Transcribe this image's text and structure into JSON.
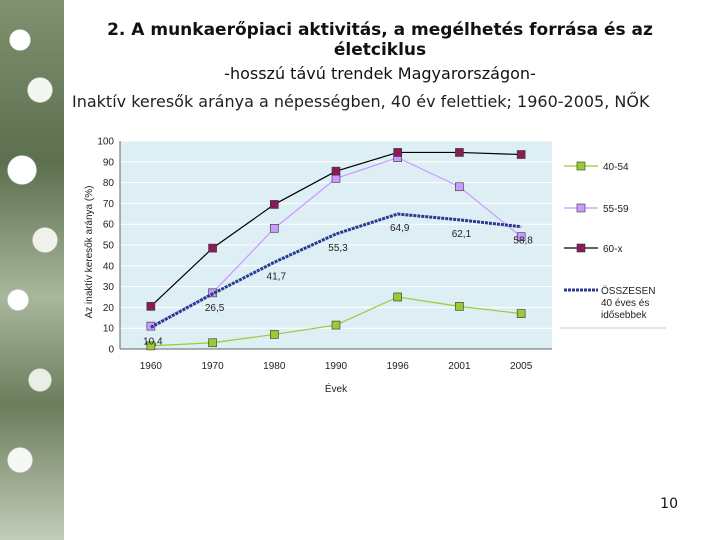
{
  "slide": {
    "title": "2. A munkaerőpiaci aktivitás, a megélhetés forrása és az életciklus",
    "subtitle": "-hosszú távú trendek Magyarországon-",
    "caption": "Inaktív keresők aránya a népességben, 40 év felettiek; 1960-2005, NŐK",
    "page_number": "10"
  },
  "chart_data": {
    "type": "line",
    "title": "",
    "xlabel": "Évek",
    "ylabel": "Az inaktív keresők aránya (%)",
    "ylim": [
      0,
      100
    ],
    "yticks": [
      0,
      10,
      20,
      30,
      40,
      50,
      60,
      70,
      80,
      90,
      100
    ],
    "categories": [
      "1960",
      "1970",
      "1980",
      "1990",
      "1996",
      "2001",
      "2005"
    ],
    "series": [
      {
        "name": "40-54",
        "color": "#99cc33",
        "marker": "square",
        "values": [
          1.5,
          3,
          7,
          11.5,
          25,
          20.5,
          17
        ]
      },
      {
        "name": "55-59",
        "color": "#cc99ff",
        "marker": "square",
        "values": [
          11,
          27,
          58,
          82,
          92,
          78,
          54
        ]
      },
      {
        "name": "60-x",
        "color": "#8b1a5a",
        "marker": "square",
        "values": [
          20.5,
          48.5,
          69.5,
          85.5,
          94.5,
          94.5,
          93.5
        ]
      },
      {
        "name": "ÖSSZESEN 40 éves és idősebbek",
        "color": "#2a3a8c",
        "marker": "none",
        "values": [
          10.4,
          26.5,
          41.7,
          55.3,
          64.9,
          62.1,
          58.8
        ]
      }
    ],
    "data_labels": [
      {
        "series": 3,
        "index": 0,
        "text": "10,4"
      },
      {
        "series": 3,
        "index": 1,
        "text": "26,5"
      },
      {
        "series": 3,
        "index": 2,
        "text": "41,7"
      },
      {
        "series": 3,
        "index": 3,
        "text": "55,3"
      },
      {
        "series": 3,
        "index": 4,
        "text": "64,9"
      },
      {
        "series": 3,
        "index": 5,
        "text": "62,1"
      },
      {
        "series": 3,
        "index": 6,
        "text": "58,8"
      }
    ],
    "legend": [
      {
        "label": "40-54"
      },
      {
        "label": "55-59"
      },
      {
        "label": "60-x"
      },
      {
        "label_lines": [
          "ÖSSZESEN",
          "40 éves és",
          "idősebbek"
        ]
      }
    ]
  }
}
